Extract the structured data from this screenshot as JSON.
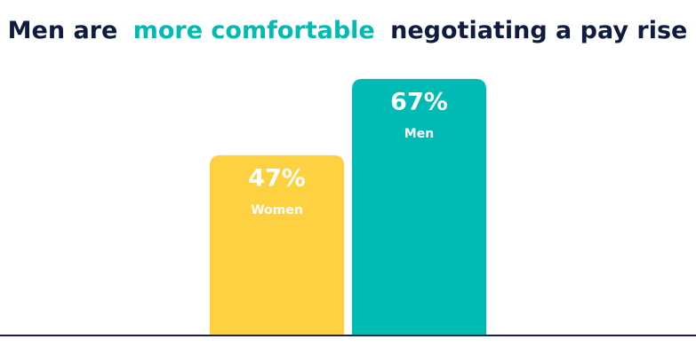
{
  "chart_data": {
    "type": "bar",
    "title_parts": [
      "Men are",
      "more comfortable",
      "negotiating a pay rise"
    ],
    "title_colors": [
      "#0f1c3f",
      "#00bbb4",
      "#0f1c3f"
    ],
    "categories": [
      "Women",
      "Men"
    ],
    "values": [
      47,
      67
    ],
    "value_labels": [
      "47%",
      "67%"
    ],
    "colors": [
      "#fdd13f",
      "#00bbb4"
    ]
  }
}
